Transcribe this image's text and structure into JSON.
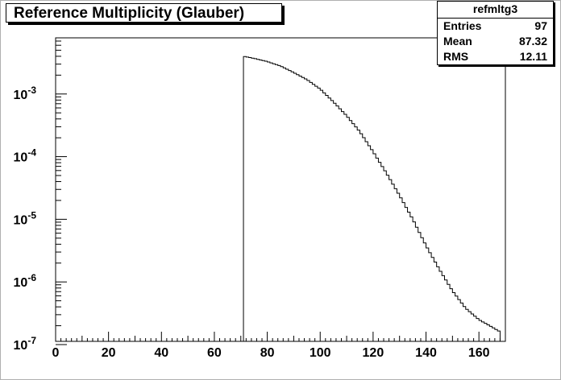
{
  "chart_data": {
    "type": "histogram",
    "title": "Reference Multiplicity (Glauber)",
    "xlabel": "",
    "ylabel": "",
    "xlim": [
      0,
      170
    ],
    "ylim": [
      1e-07,
      0.007
    ],
    "yscale": "log",
    "bin_width": 1,
    "x_ticks": [
      "0",
      "20",
      "40",
      "60",
      "80",
      "100",
      "120",
      "140",
      "160"
    ],
    "y_ticks": [
      {
        "base": "10",
        "exp": "-7",
        "value": 1e-07
      },
      {
        "base": "10",
        "exp": "-6",
        "value": 1e-06
      },
      {
        "base": "10",
        "exp": "-5",
        "value": 1e-05
      },
      {
        "base": "10",
        "exp": "-4",
        "value": 0.0001
      },
      {
        "base": "10",
        "exp": "-3",
        "value": 0.001
      }
    ],
    "histogram_range": [
      71,
      168
    ],
    "curve_points": [
      [
        71,
        0.004
      ],
      [
        75,
        0.0037
      ],
      [
        80,
        0.0033
      ],
      [
        85,
        0.0028
      ],
      [
        90,
        0.0022
      ],
      [
        95,
        0.0017
      ],
      [
        100,
        0.0012
      ],
      [
        105,
        0.00075
      ],
      [
        110,
        0.00045
      ],
      [
        115,
        0.00025
      ],
      [
        120,
        0.00012
      ],
      [
        125,
        5.5e-05
      ],
      [
        130,
        2.4e-05
      ],
      [
        135,
        1e-05
      ],
      [
        140,
        3.8e-06
      ],
      [
        145,
        1.6e-06
      ],
      [
        150,
        7.2e-07
      ],
      [
        155,
        3.8e-07
      ],
      [
        160,
        2.5e-07
      ],
      [
        165,
        1.9e-07
      ],
      [
        168,
        1.6e-07
      ]
    ],
    "grid": false,
    "legend": "none"
  },
  "stats": {
    "name": "refmltg3",
    "entries_label": "Entries",
    "entries_value": "97",
    "mean_label": "Mean",
    "mean_value": "87.32",
    "rms_label": "RMS",
    "rms_value": "12.11"
  },
  "colors": {
    "line": "#000000",
    "background": "#ffffff",
    "frame": "#b0b0b0"
  }
}
